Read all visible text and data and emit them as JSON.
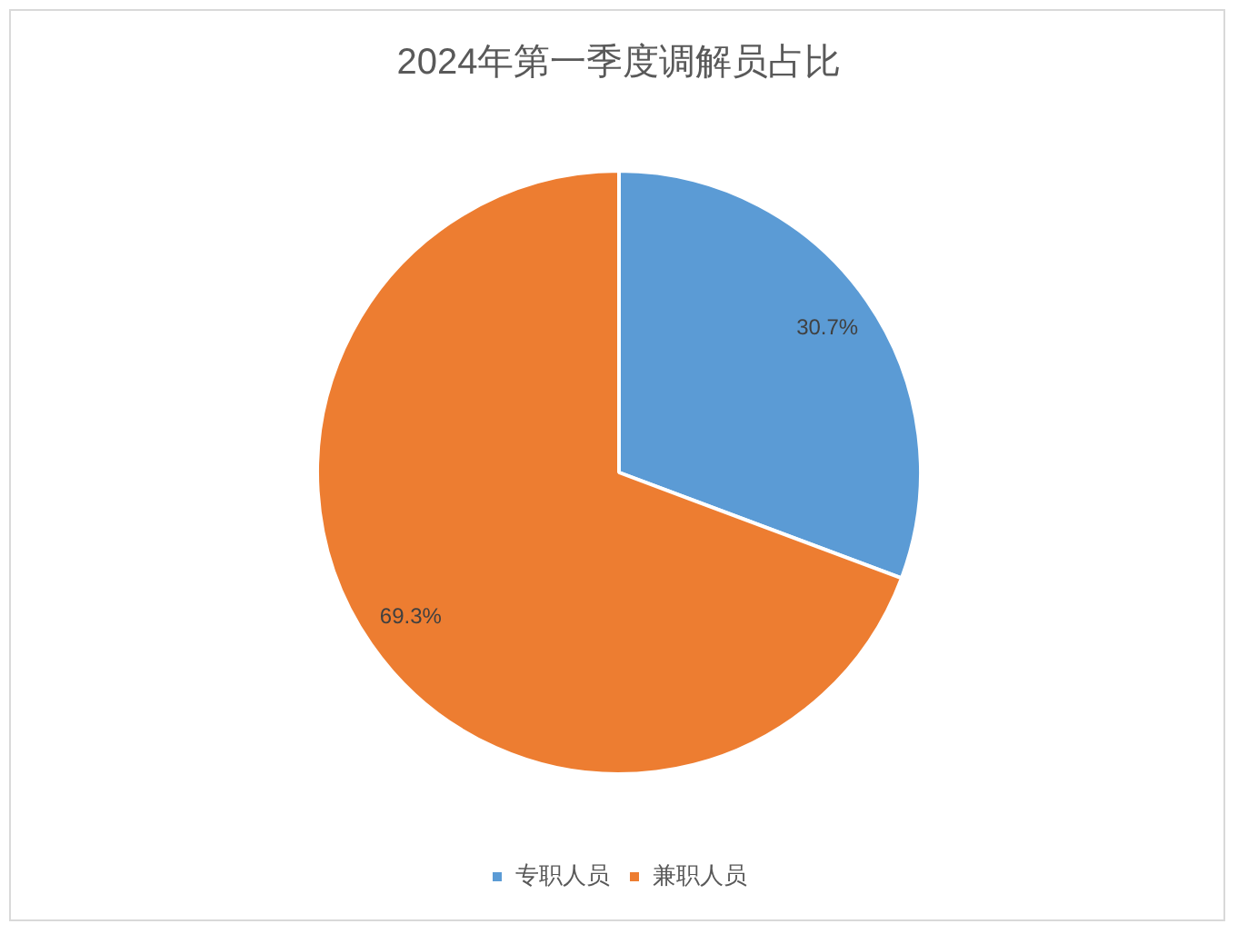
{
  "chart_data": {
    "type": "pie",
    "title": "2024年第一季度调解员占比",
    "categories": [
      "专职人员",
      "兼职人员"
    ],
    "values": [
      30.7,
      69.3
    ],
    "colors": [
      "#5b9bd5",
      "#ed7d31"
    ],
    "value_labels": [
      "30.7%",
      "69.3%"
    ],
    "legend": "bottom"
  }
}
